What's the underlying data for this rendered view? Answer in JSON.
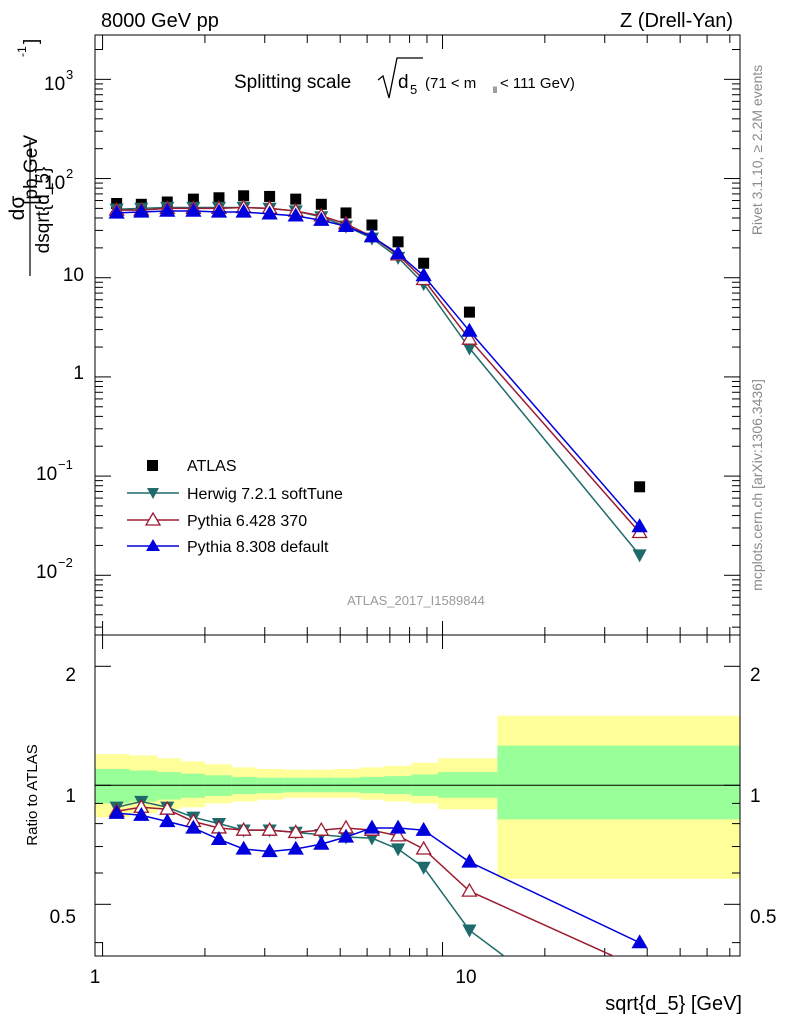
{
  "header": {
    "energy": "8000 GeV pp",
    "process": "Z (Drell-Yan)",
    "plot_title_main": "Splitting scale",
    "plot_title_var": "d",
    "plot_title_sub": "5",
    "plot_title_range_a": "(71 < m",
    "plot_title_range_sub": "ll",
    "plot_title_range_b": " < 111 GeV)",
    "analysis_id": "ATLAS_2017_I1589844",
    "side_rivet": "Rivet 3.1.10, ≥ 2.2M events",
    "side_mcplots": "mcplots.cern.ch [arXiv:1306.3436]"
  },
  "axes": {
    "ylabel_num": "dσ",
    "ylabel_den": "dsqrt{d_5}",
    "ylabel_units": "[pb,GeV",
    "ylabel_units_sup": "-1",
    "ylabel_units_end": "]",
    "ratio_ylabel": "Ratio to ATLAS",
    "xlabel": "sqrt{d_5} [GeV]"
  },
  "tick_labels": {
    "main_y": [
      "10",
      "3",
      "10",
      "2",
      "10",
      "1",
      "10",
      "−1",
      "10",
      "−2"
    ],
    "ratio_y": [
      "2",
      "1",
      "0.5"
    ],
    "ratio_y_right": [
      "2",
      "1",
      "0.5"
    ],
    "x": [
      "1",
      "10"
    ]
  },
  "legend": [
    {
      "label": "ATLAS",
      "color": "#000000",
      "marker": "square"
    },
    {
      "label": "Herwig 7.2.1 softTune",
      "color": "#1f6b6b",
      "marker": "triangle-down"
    },
    {
      "label": "Pythia 6.428 370",
      "color": "#9b1b30",
      "marker": "triangle-open"
    },
    {
      "label": "Pythia 8.308 default",
      "color": "#0000dd",
      "marker": "triangle-up"
    }
  ],
  "chart_data": {
    "type": "scatter",
    "xscale": "log",
    "xlim": [
      0.95,
      75
    ],
    "main": {
      "yscale": "log",
      "ylim": [
        0.0025,
        2800
      ],
      "x": [
        1.1,
        1.3,
        1.55,
        1.85,
        2.2,
        2.6,
        3.1,
        3.7,
        4.4,
        5.2,
        6.2,
        7.4,
        8.8,
        12,
        38
      ],
      "series": [
        {
          "name": "ATLAS",
          "values": [
            56,
            55,
            58,
            62,
            64,
            67,
            66,
            62,
            55,
            45,
            34,
            23,
            14,
            4.5,
            0.078
          ]
        },
        {
          "name": "Herwig 7.2.1 softTune",
          "values": [
            49,
            50,
            51,
            51,
            51,
            51,
            50,
            47,
            41,
            33,
            25,
            16,
            8.7,
            1.95,
            0.016
          ]
        },
        {
          "name": "Pythia 6.428 370",
          "values": [
            48,
            48,
            50,
            50,
            50,
            51,
            50,
            47,
            42,
            35,
            26,
            17,
            9.6,
            2.4,
            0.027
          ]
        },
        {
          "name": "Pythia 8.308 default",
          "values": [
            45,
            46,
            47,
            47,
            46,
            46,
            44,
            42,
            38,
            33,
            26,
            17.5,
            10.5,
            2.9,
            0.031
          ]
        }
      ]
    },
    "ratio": {
      "ylim": [
        0.37,
        2.4
      ],
      "reference": 1,
      "series": [
        {
          "name": "Herwig 7.2.1 softTune",
          "values": [
            0.88,
            0.91,
            0.88,
            0.83,
            0.8,
            0.77,
            0.77,
            0.76,
            0.75,
            0.74,
            0.735,
            0.69,
            0.62,
            0.43,
            0.205
          ]
        },
        {
          "name": "Pythia 6.428 370",
          "values": [
            0.86,
            0.88,
            0.87,
            0.81,
            0.78,
            0.77,
            0.77,
            0.76,
            0.77,
            0.78,
            0.77,
            0.745,
            0.69,
            0.54,
            0.345
          ]
        },
        {
          "name": "Pythia 8.308 default",
          "values": [
            0.85,
            0.84,
            0.81,
            0.78,
            0.73,
            0.69,
            0.68,
            0.69,
            0.71,
            0.74,
            0.78,
            0.78,
            0.77,
            0.64,
            0.4
          ]
        }
      ],
      "uncertainty_bands": {
        "edges": [
          0.95,
          1.2,
          1.45,
          1.7,
          2.0,
          2.4,
          2.85,
          3.4,
          4.05,
          4.8,
          5.7,
          6.75,
          8.1,
          9.7,
          14.5,
          75
        ],
        "inner": [
          [
            0.9,
            1.1
          ],
          [
            0.91,
            1.09
          ],
          [
            0.92,
            1.08
          ],
          [
            0.93,
            1.07
          ],
          [
            0.94,
            1.06
          ],
          [
            0.95,
            1.05
          ],
          [
            0.955,
            1.045
          ],
          [
            0.96,
            1.045
          ],
          [
            0.96,
            1.045
          ],
          [
            0.96,
            1.045
          ],
          [
            0.955,
            1.05
          ],
          [
            0.95,
            1.055
          ],
          [
            0.94,
            1.065
          ],
          [
            0.93,
            1.08
          ],
          [
            0.82,
            1.26
          ]
        ],
        "outer": [
          [
            0.83,
            1.2
          ],
          [
            0.85,
            1.19
          ],
          [
            0.87,
            1.17
          ],
          [
            0.88,
            1.15
          ],
          [
            0.9,
            1.13
          ],
          [
            0.91,
            1.11
          ],
          [
            0.92,
            1.1
          ],
          [
            0.93,
            1.095
          ],
          [
            0.93,
            1.095
          ],
          [
            0.93,
            1.1
          ],
          [
            0.92,
            1.11
          ],
          [
            0.91,
            1.12
          ],
          [
            0.9,
            1.14
          ],
          [
            0.87,
            1.17
          ],
          [
            0.58,
            1.5
          ]
        ]
      }
    }
  }
}
